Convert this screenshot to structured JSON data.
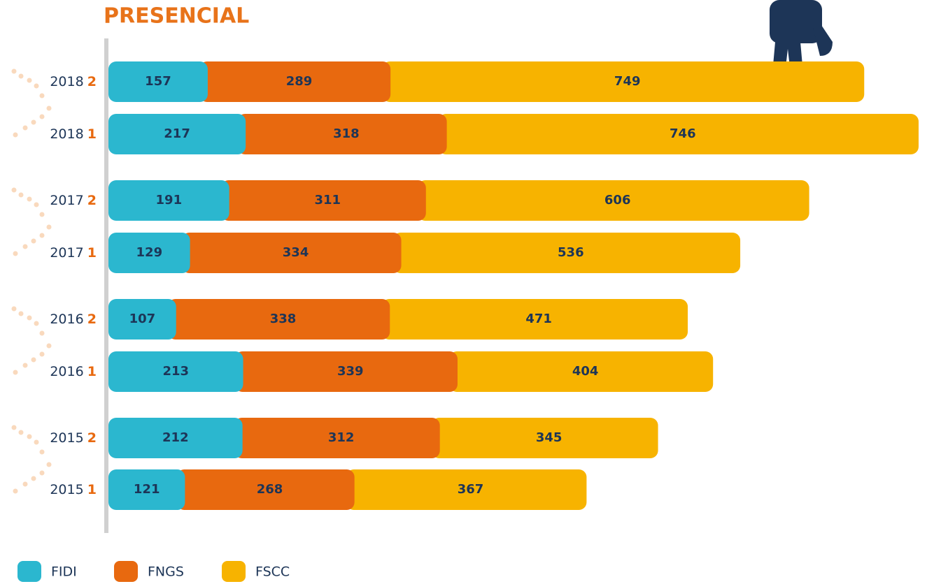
{
  "chart_data": {
    "type": "stacked-bar",
    "orientation": "horizontal",
    "title": "PRESENCIAL",
    "categories": [
      [
        "2018",
        "2"
      ],
      [
        "2018",
        "1"
      ],
      [
        "2017",
        "2"
      ],
      [
        "2017",
        "1"
      ],
      [
        "2016",
        "2"
      ],
      [
        "2016",
        "1"
      ],
      [
        "2015",
        "2"
      ],
      [
        "2015",
        "1"
      ]
    ],
    "series": [
      {
        "name": "FIDI",
        "color": "#2bb7cf",
        "values": [
          157,
          217,
          191,
          129,
          107,
          213,
          212,
          121
        ]
      },
      {
        "name": "FNGS",
        "color": "#e8690f",
        "values": [
          289,
          318,
          311,
          334,
          338,
          339,
          312,
          268
        ]
      },
      {
        "name": "FSCC",
        "color": "#f7b300",
        "values": [
          749,
          746,
          606,
          536,
          471,
          404,
          345,
          367
        ]
      }
    ]
  }
}
